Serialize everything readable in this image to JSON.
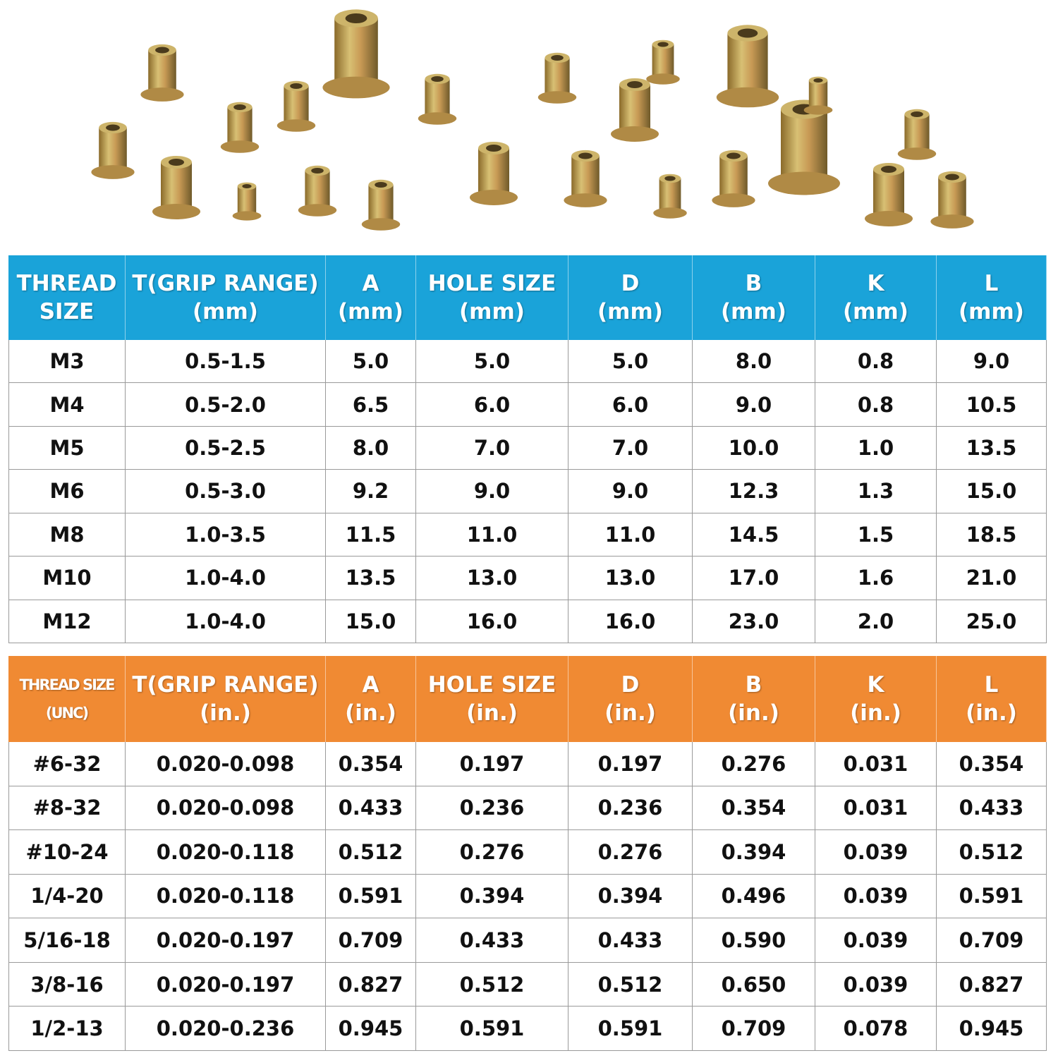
{
  "tables": [
    {
      "header": [
        [
          "THREAD",
          "SIZE"
        ],
        [
          "T(GRIP RANGE)",
          "(mm)"
        ],
        [
          "A",
          "(mm)"
        ],
        [
          "HOLE SIZE",
          "(mm)"
        ],
        [
          "D",
          "(mm)"
        ],
        [
          "B",
          "(mm)"
        ],
        [
          "K",
          "(mm)"
        ],
        [
          "L",
          "(mm)"
        ]
      ],
      "rows": [
        [
          "M3",
          "0.5-1.5",
          "5.0",
          "5.0",
          "5.0",
          "8.0",
          "0.8",
          "9.0"
        ],
        [
          "M4",
          "0.5-2.0",
          "6.5",
          "6.0",
          "6.0",
          "9.0",
          "0.8",
          "10.5"
        ],
        [
          "M5",
          "0.5-2.5",
          "8.0",
          "7.0",
          "7.0",
          "10.0",
          "1.0",
          "13.5"
        ],
        [
          "M6",
          "0.5-3.0",
          "9.2",
          "9.0",
          "9.0",
          "12.3",
          "1.3",
          "15.0"
        ],
        [
          "M8",
          "1.0-3.5",
          "11.5",
          "11.0",
          "11.0",
          "14.5",
          "1.5",
          "18.5"
        ],
        [
          "M10",
          "1.0-4.0",
          "13.5",
          "13.0",
          "13.0",
          "17.0",
          "1.6",
          "21.0"
        ],
        [
          "M12",
          "1.0-4.0",
          "15.0",
          "16.0",
          "16.0",
          "23.0",
          "2.0",
          "25.0"
        ]
      ]
    },
    {
      "header": [
        [
          "THREAD SIZE",
          "(UNC)"
        ],
        [
          "T(GRIP RANGE)",
          "(in.)"
        ],
        [
          "A",
          "(in.)"
        ],
        [
          "HOLE SIZE",
          "(in.)"
        ],
        [
          "D",
          "(in.)"
        ],
        [
          "B",
          "(in.)"
        ],
        [
          "K",
          "(in.)"
        ],
        [
          "L",
          "(in.)"
        ]
      ],
      "rows": [
        [
          "#6-32",
          "0.020-0.098",
          "0.354",
          "0.197",
          "0.197",
          "0.276",
          "0.031",
          "0.354"
        ],
        [
          "#8-32",
          "0.020-0.098",
          "0.433",
          "0.236",
          "0.236",
          "0.354",
          "0.031",
          "0.433"
        ],
        [
          "#10-24",
          "0.020-0.118",
          "0.512",
          "0.276",
          "0.276",
          "0.394",
          "0.039",
          "0.512"
        ],
        [
          "1/4-20",
          "0.020-0.118",
          "0.591",
          "0.394",
          "0.394",
          "0.496",
          "0.039",
          "0.591"
        ],
        [
          "5/16-18",
          "0.020-0.197",
          "0.709",
          "0.433",
          "0.433",
          "0.590",
          "0.039",
          "0.709"
        ],
        [
          "3/8-16",
          "0.020-0.197",
          "0.827",
          "0.512",
          "0.512",
          "0.650",
          "0.039",
          "0.827"
        ],
        [
          "1/2-13",
          "0.020-0.236",
          "0.945",
          "0.591",
          "0.591",
          "0.709",
          "0.078",
          "0.945"
        ]
      ]
    }
  ]
}
